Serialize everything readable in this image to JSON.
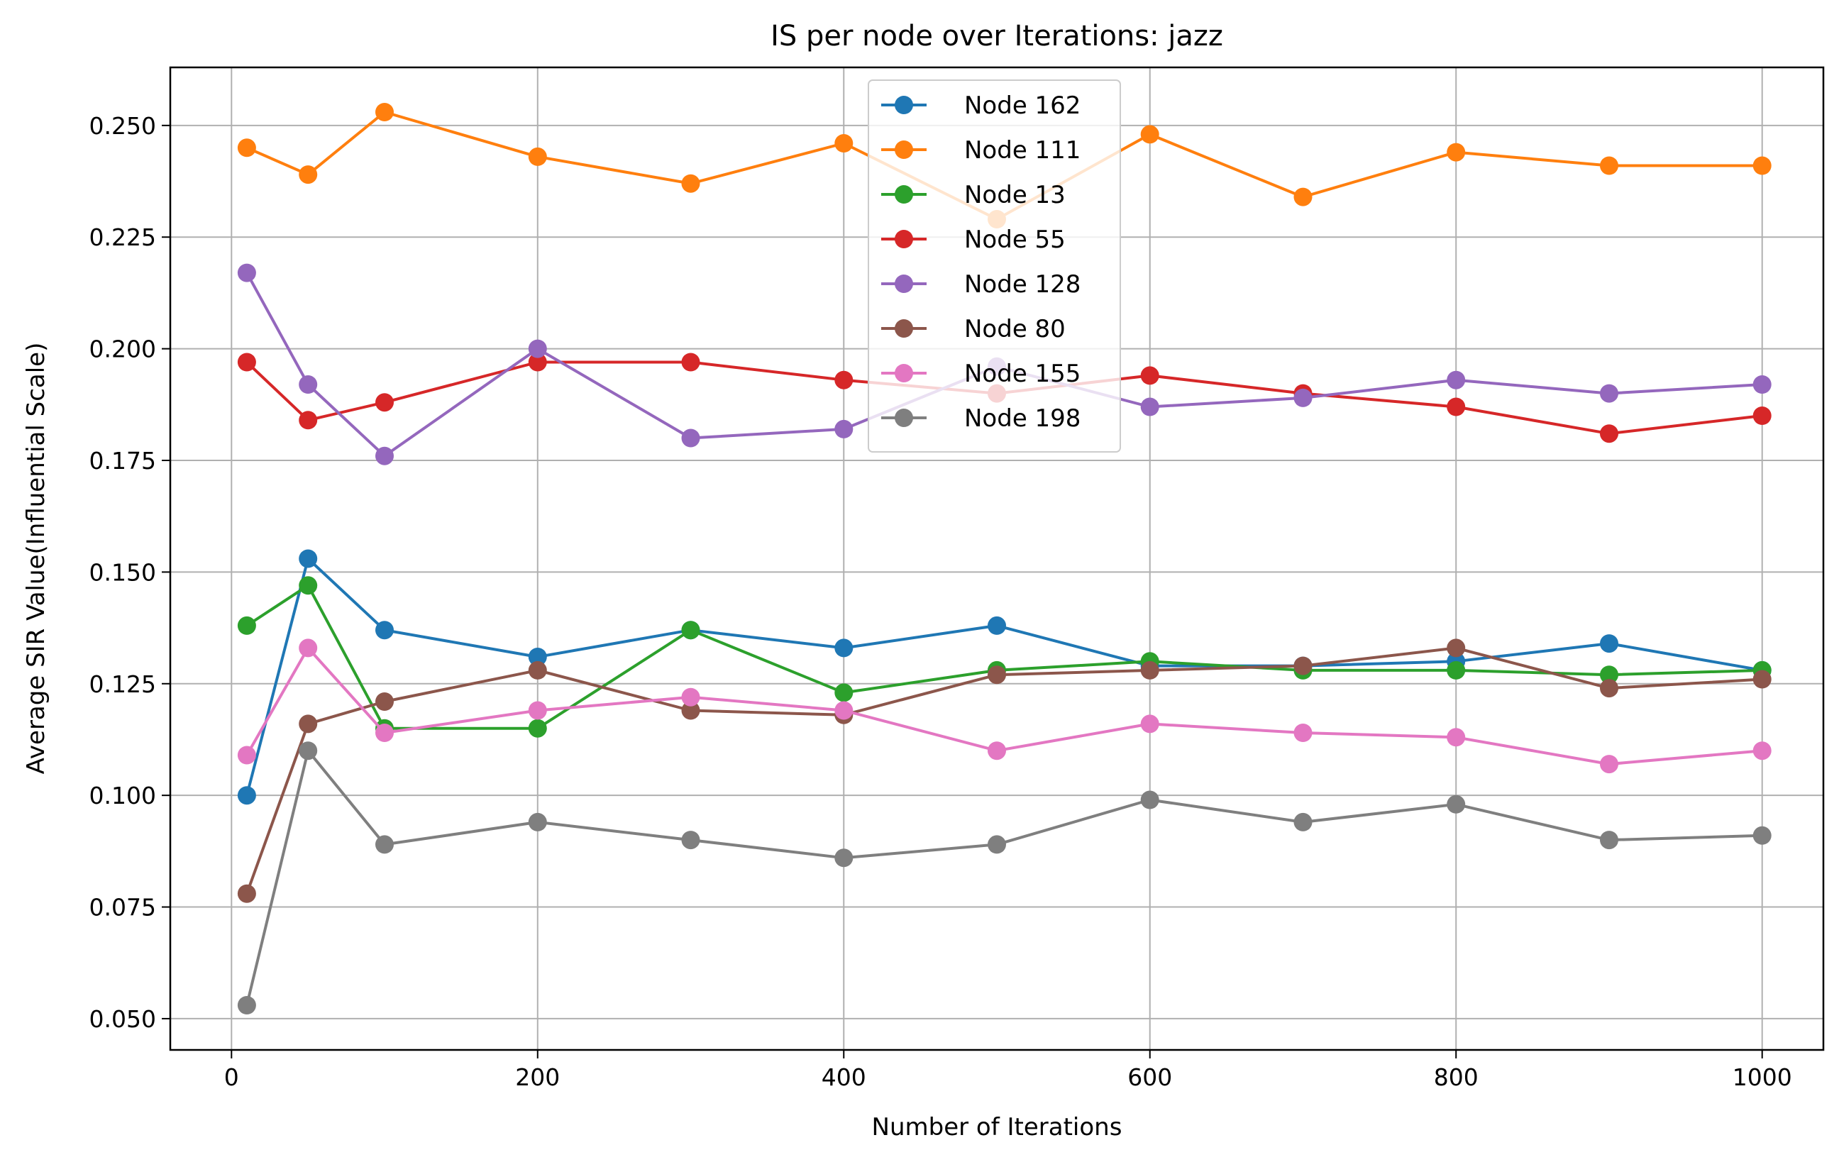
{
  "chart_data": {
    "type": "line",
    "title": "IS per node over Iterations: jazz",
    "xlabel": "Number of Iterations",
    "ylabel": "Average SIR Value(Influential Scale)",
    "xlim": [
      -40,
      1040
    ],
    "ylim": [
      0.043,
      0.263
    ],
    "xticks": [
      0,
      200,
      400,
      600,
      800,
      1000
    ],
    "xtick_labels": [
      "0",
      "200",
      "400",
      "600",
      "800",
      "1000"
    ],
    "yticks": [
      0.05,
      0.075,
      0.1,
      0.125,
      0.15,
      0.175,
      0.2,
      0.225,
      0.25
    ],
    "ytick_labels": [
      "0.050",
      "0.075",
      "0.100",
      "0.125",
      "0.150",
      "0.175",
      "0.200",
      "0.225",
      "0.250"
    ],
    "grid": true,
    "legend_position": "top-center",
    "x": [
      10,
      50,
      100,
      200,
      300,
      400,
      500,
      600,
      700,
      800,
      900,
      1000
    ],
    "series": [
      {
        "name": "Node 162",
        "color": "#1f77b4",
        "values": [
          0.1,
          0.153,
          0.137,
          0.131,
          0.137,
          0.133,
          0.138,
          0.129,
          0.129,
          0.13,
          0.134,
          0.128
        ]
      },
      {
        "name": "Node 111",
        "color": "#ff7f0e",
        "values": [
          0.245,
          0.239,
          0.253,
          0.243,
          0.237,
          0.246,
          0.229,
          0.248,
          0.234,
          0.244,
          0.241,
          0.241
        ]
      },
      {
        "name": "Node 13",
        "color": "#2ca02c",
        "values": [
          0.138,
          0.147,
          0.115,
          0.115,
          0.137,
          0.123,
          0.128,
          0.13,
          0.128,
          0.128,
          0.127,
          0.128
        ]
      },
      {
        "name": "Node 55",
        "color": "#d62728",
        "values": [
          0.197,
          0.184,
          0.188,
          0.197,
          0.197,
          0.193,
          0.19,
          0.194,
          0.19,
          0.187,
          0.181,
          0.185
        ]
      },
      {
        "name": "Node 128",
        "color": "#9467bd",
        "values": [
          0.217,
          0.192,
          0.176,
          0.2,
          0.18,
          0.182,
          0.196,
          0.187,
          0.189,
          0.193,
          0.19,
          0.192
        ]
      },
      {
        "name": "Node 80",
        "color": "#8c564b",
        "values": [
          0.078,
          0.116,
          0.121,
          0.128,
          0.119,
          0.118,
          0.127,
          0.128,
          0.129,
          0.133,
          0.124,
          0.126
        ]
      },
      {
        "name": "Node 155",
        "color": "#e377c2",
        "values": [
          0.109,
          0.133,
          0.114,
          0.119,
          0.122,
          0.119,
          0.11,
          0.116,
          0.114,
          0.113,
          0.107,
          0.11
        ]
      },
      {
        "name": "Node 198",
        "color": "#7f7f7f",
        "values": [
          0.053,
          0.11,
          0.089,
          0.094,
          0.09,
          0.086,
          0.089,
          0.099,
          0.094,
          0.098,
          0.09,
          0.091
        ]
      }
    ]
  }
}
